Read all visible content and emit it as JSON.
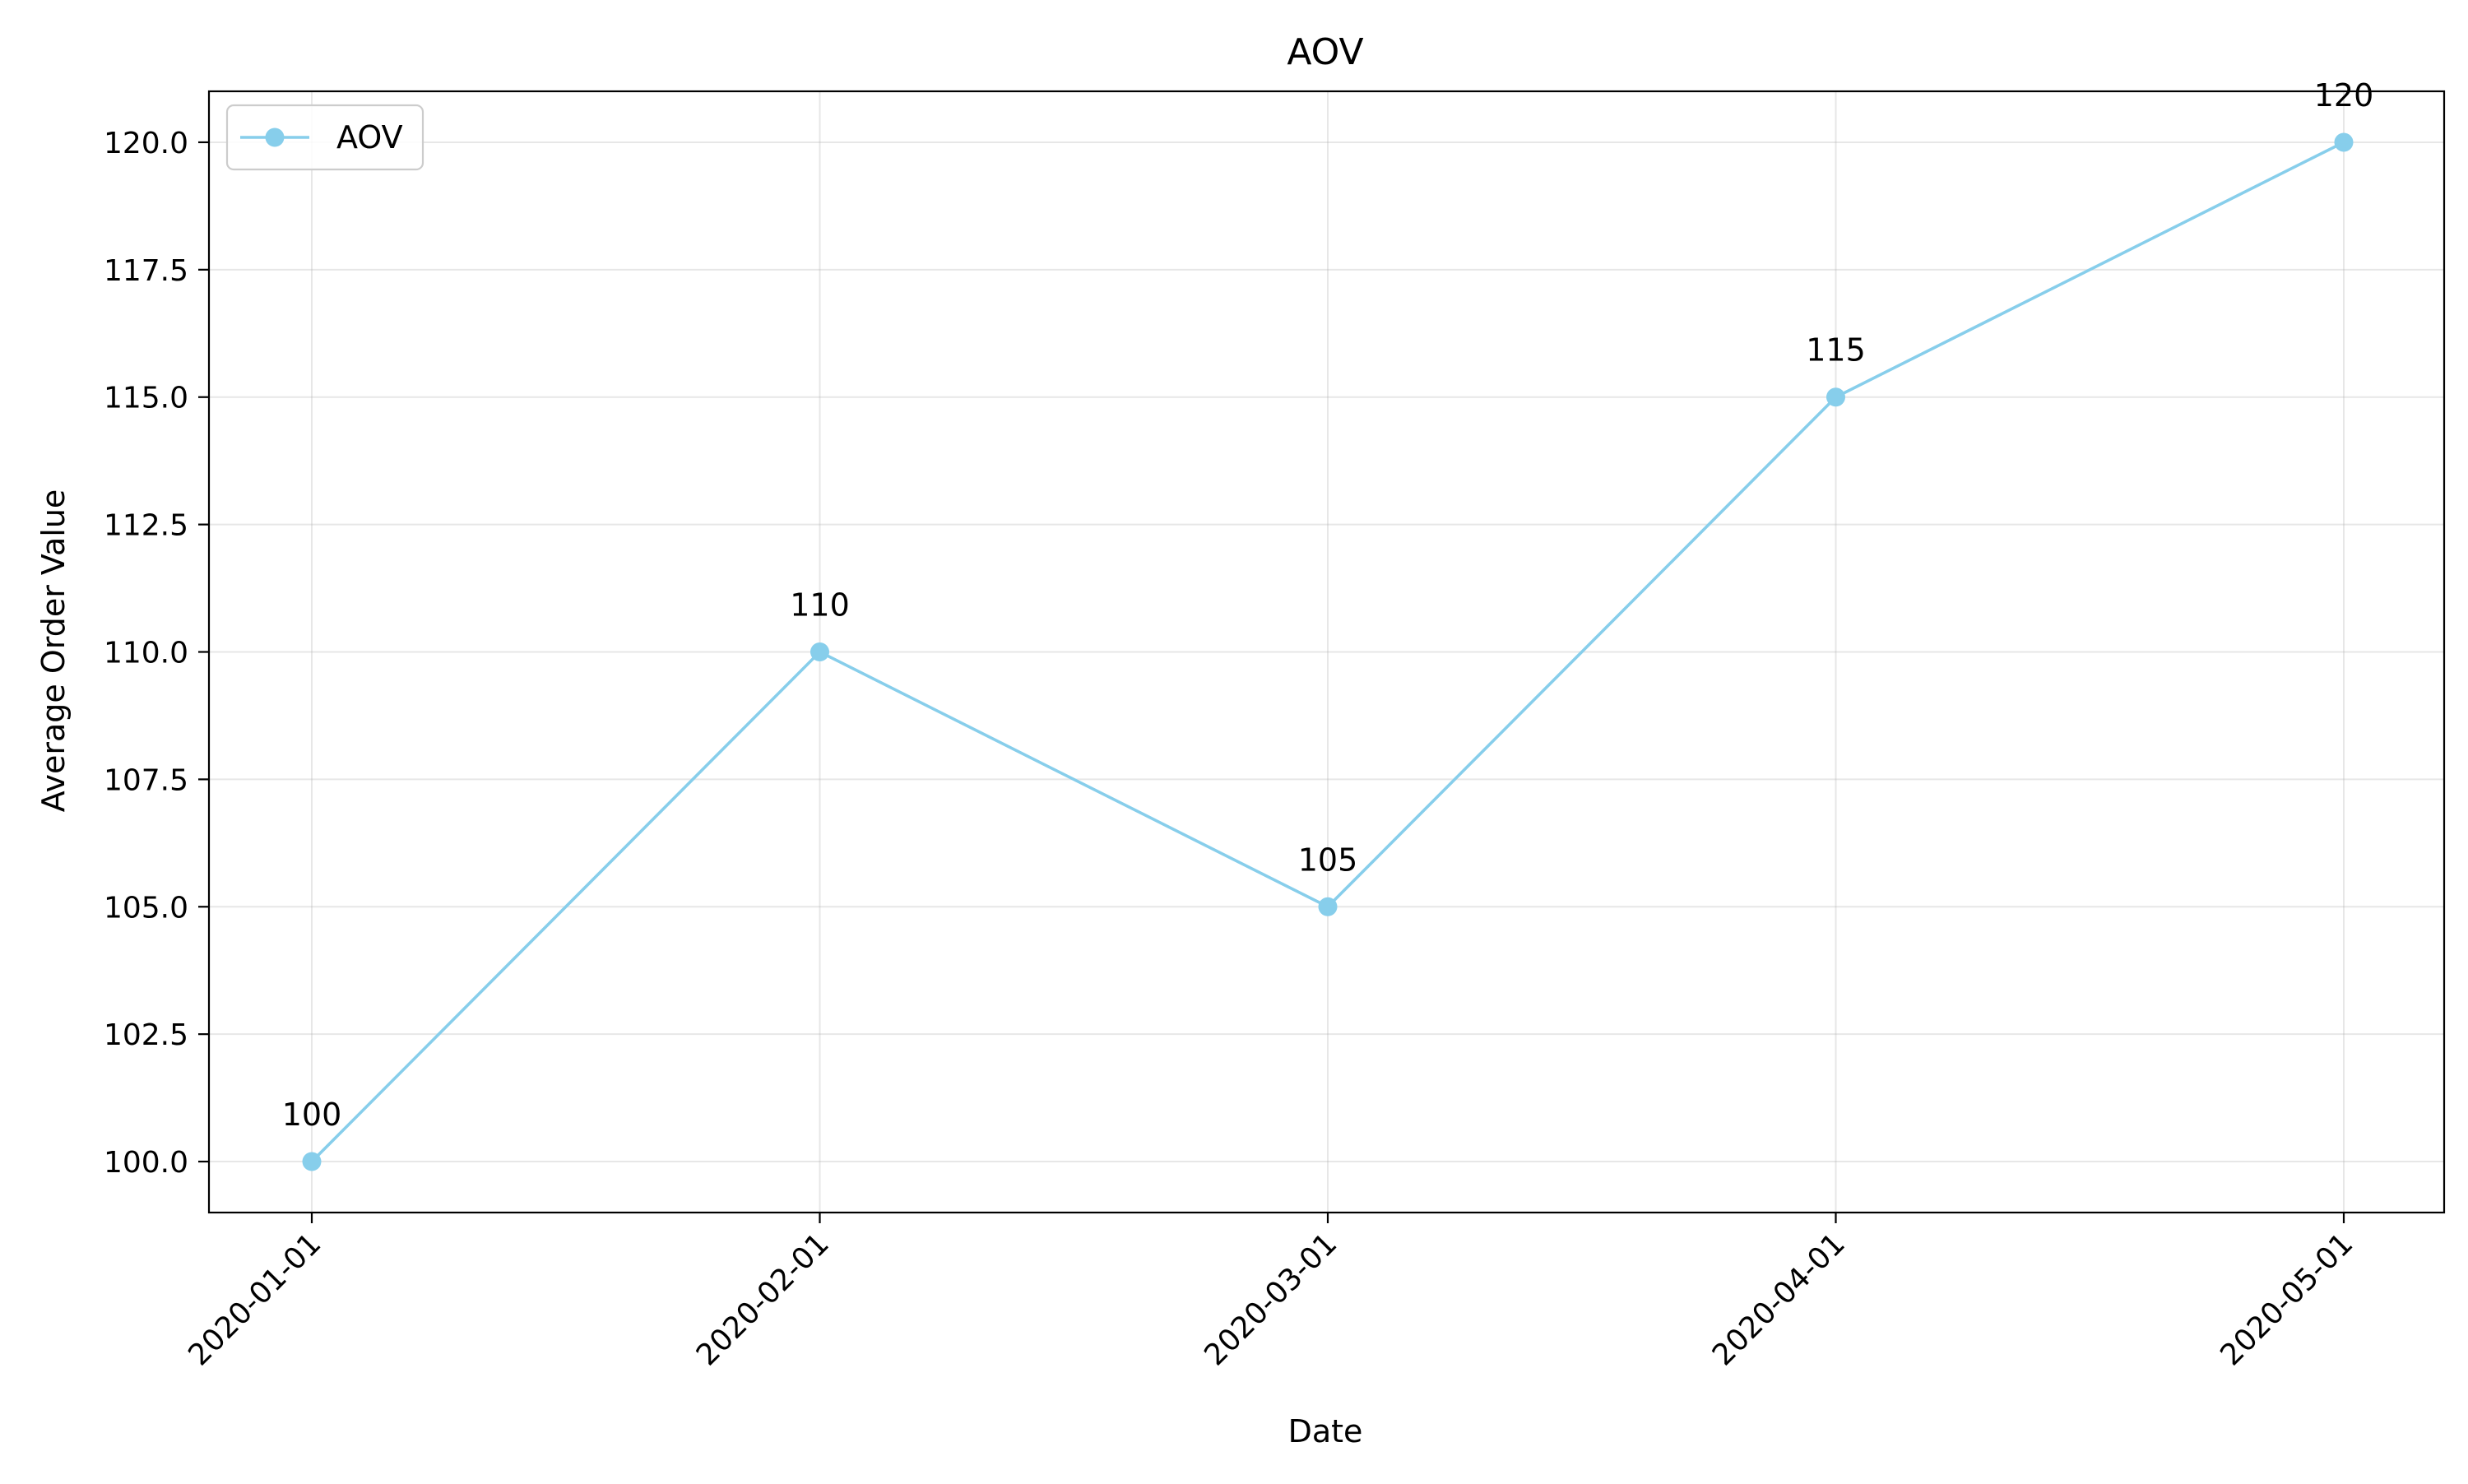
{
  "chart_data": {
    "type": "line",
    "title": "AOV",
    "xlabel": "Date",
    "ylabel": "Average Order Value",
    "categories": [
      "2020-01-01",
      "2020-02-01",
      "2020-03-01",
      "2020-04-01",
      "2020-05-01"
    ],
    "series": [
      {
        "name": "AOV",
        "values": [
          100,
          110,
          105,
          115,
          120
        ],
        "color": "#87ceeb",
        "marker": "circle"
      }
    ],
    "data_labels": [
      "100",
      "110",
      "105",
      "115",
      "120"
    ],
    "ylim": [
      99,
      121
    ],
    "yticks": [
      100.0,
      102.5,
      105.0,
      107.5,
      110.0,
      112.5,
      115.0,
      117.5,
      120.0
    ],
    "ytick_labels": [
      "100.0",
      "102.5",
      "105.0",
      "107.5",
      "110.0",
      "112.5",
      "115.0",
      "117.5",
      "120.0"
    ],
    "xtick_rotation_deg": 45,
    "grid": true,
    "legend": {
      "position": "upper left",
      "entries": [
        "AOV"
      ]
    }
  }
}
